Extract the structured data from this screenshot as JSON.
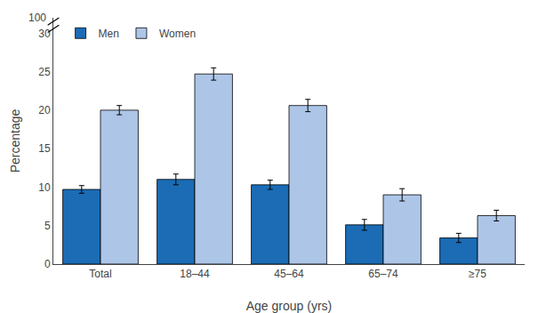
{
  "chart_data": {
    "type": "bar",
    "categories": [
      "Total",
      "18–44",
      "45–64",
      "65–74",
      "≥75"
    ],
    "series": [
      {
        "name": "Men",
        "color": "#1b6cb5",
        "values": [
          9.7,
          11.0,
          10.3,
          5.1,
          3.4
        ],
        "errors": [
          0.5,
          0.7,
          0.6,
          0.7,
          0.6
        ]
      },
      {
        "name": "Women",
        "color": "#adc6e8",
        "values": [
          20.0,
          24.7,
          20.6,
          9.0,
          6.3
        ],
        "errors": [
          0.6,
          0.8,
          0.8,
          0.8,
          0.7
        ]
      }
    ],
    "xlabel": "Age group (yrs)",
    "ylabel": "Percentage",
    "ylim": [
      0,
      32
    ],
    "yticks": [
      0,
      5,
      10,
      15,
      20,
      25,
      30
    ],
    "annotations": [
      "100"
    ],
    "grid": false,
    "legend": "upper left"
  }
}
